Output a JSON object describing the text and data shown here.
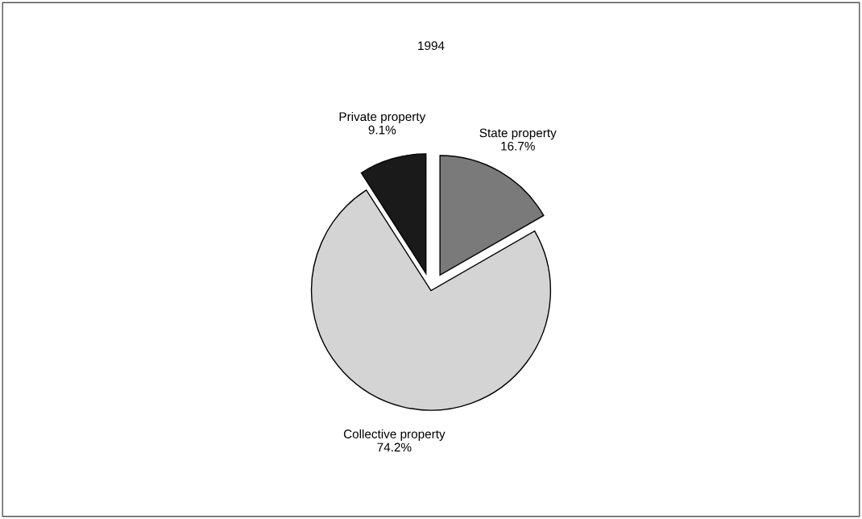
{
  "chart_data": {
    "type": "pie",
    "title": "1994",
    "categories": [
      "State property",
      "Collective property",
      "Private property"
    ],
    "values": [
      16.7,
      74.2,
      9.1
    ],
    "value_labels": [
      "16.7%",
      "74.2%",
      "9.1%"
    ],
    "colors": [
      "#7a7a7a",
      "#d4d4d4",
      "#1a1a1a"
    ]
  }
}
